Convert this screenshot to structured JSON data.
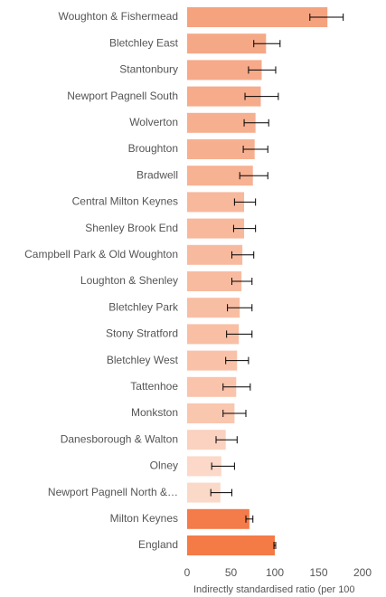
{
  "chart_data": {
    "type": "hbar",
    "categories": [
      "Woughton & Fishermead",
      "Bletchley East",
      "Stantonbury",
      "Newport Pagnell South",
      "Wolverton",
      "Broughton",
      "Bradwell",
      "Central Milton Keynes",
      "Shenley Brook End",
      "Campbell Park & Old Woughton",
      "Loughton & Shenley",
      "Bletchley Park",
      "Stony Stratford",
      "Bletchley West",
      "Tattenhoe",
      "Monkston",
      "Danesborough & Walton",
      "Olney",
      "Newport Pagnell North &…",
      "Milton Keynes",
      "England"
    ],
    "series": [
      {
        "values": [
          160,
          90,
          85,
          84,
          78,
          77,
          75,
          65,
          65,
          63,
          62,
          60,
          59,
          57,
          56,
          54,
          44,
          39,
          38,
          71,
          100
        ],
        "lower": [
          140,
          76,
          70,
          66,
          65,
          64,
          60,
          54,
          53,
          51,
          51,
          46,
          45,
          44,
          41,
          41,
          33,
          28,
          27,
          67,
          99
        ],
        "upper": [
          178,
          106,
          101,
          104,
          93,
          92,
          92,
          78,
          78,
          76,
          74,
          74,
          74,
          70,
          72,
          67,
          57,
          54,
          51,
          75,
          101
        ],
        "colors": [
          "#f5a27f",
          "#f5a886",
          "#f6aa89",
          "#f6ab8a",
          "#f6af8f",
          "#f6b090",
          "#f7b193",
          "#f7b89c",
          "#f7b89c",
          "#f8ba9f",
          "#f8bba0",
          "#f8bea4",
          "#f8bfa5",
          "#f9c2a8",
          "#f9c4ab",
          "#f9c6ae",
          "#fad2bf",
          "#fbd8c8",
          "#fbd9c9",
          "#f47b4a",
          "#f47a46"
        ]
      }
    ],
    "xlim": [
      0,
      200
    ],
    "xticks": [
      0,
      50,
      100,
      150,
      200
    ],
    "x_label": "Indirectly standardised ratio (per 100"
  }
}
